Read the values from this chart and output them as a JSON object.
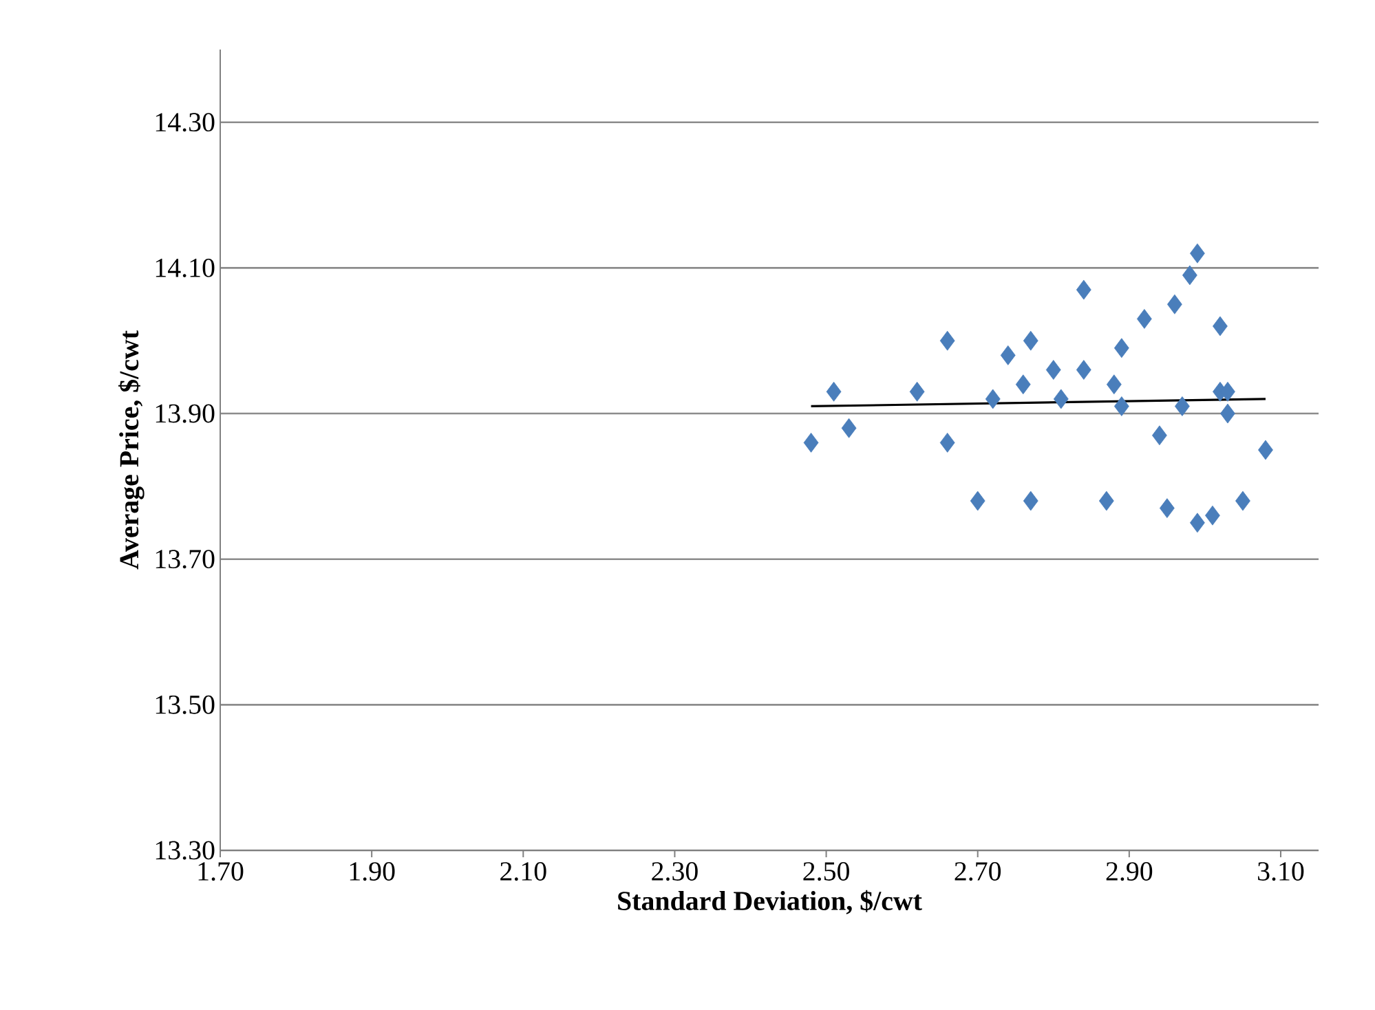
{
  "chart_data": {
    "type": "scatter",
    "xlabel": "Standard Deviation, $/cwt",
    "ylabel": "Average Price, $/cwt",
    "xlim": [
      1.7,
      3.15
    ],
    "ylim": [
      13.3,
      14.4
    ],
    "xticks": [
      {
        "value": 1.7,
        "label": "1.70"
      },
      {
        "value": 1.9,
        "label": "1.90"
      },
      {
        "value": 2.1,
        "label": "2.10"
      },
      {
        "value": 2.3,
        "label": "2.30"
      },
      {
        "value": 2.5,
        "label": "2.50"
      },
      {
        "value": 2.7,
        "label": "2.70"
      },
      {
        "value": 2.9,
        "label": "2.90"
      },
      {
        "value": 3.1,
        "label": "3.10"
      }
    ],
    "yticks": [
      {
        "value": 13.3,
        "label": "13.30"
      },
      {
        "value": 13.5,
        "label": "13.50"
      },
      {
        "value": 13.7,
        "label": "13.70"
      },
      {
        "value": 13.9,
        "label": "13.90"
      },
      {
        "value": 14.1,
        "label": "14.10"
      },
      {
        "value": 14.3,
        "label": "14.30"
      }
    ],
    "grid": "y",
    "marker": "diamond",
    "series": [
      {
        "type": "scatter",
        "color": "#4a7ebb",
        "x": [
          2.99,
          2.98,
          2.84,
          2.96,
          2.92,
          3.02,
          2.77,
          2.89,
          2.8,
          2.84,
          2.76,
          2.88,
          3.02,
          3.03,
          2.81,
          2.89,
          2.97,
          3.03,
          2.94,
          3.08,
          2.77,
          2.87,
          2.95,
          2.99,
          3.01,
          3.05,
          2.48,
          2.51,
          2.53,
          2.62,
          2.66,
          2.66,
          2.7,
          2.72,
          2.74
        ],
        "values": [
          14.12,
          14.09,
          14.07,
          14.05,
          14.03,
          14.02,
          14.0,
          13.99,
          13.96,
          13.96,
          13.94,
          13.94,
          13.93,
          13.93,
          13.92,
          13.91,
          13.91,
          13.9,
          13.87,
          13.85,
          13.78,
          13.78,
          13.77,
          13.75,
          13.76,
          13.78,
          13.86,
          13.93,
          13.88,
          13.93,
          14.0,
          13.86,
          13.78,
          13.92,
          13.98
        ]
      },
      {
        "type": "line",
        "color": "#000000",
        "marker": "none",
        "x": [
          2.48,
          3.08
        ],
        "values": [
          13.91,
          13.92
        ]
      }
    ]
  }
}
